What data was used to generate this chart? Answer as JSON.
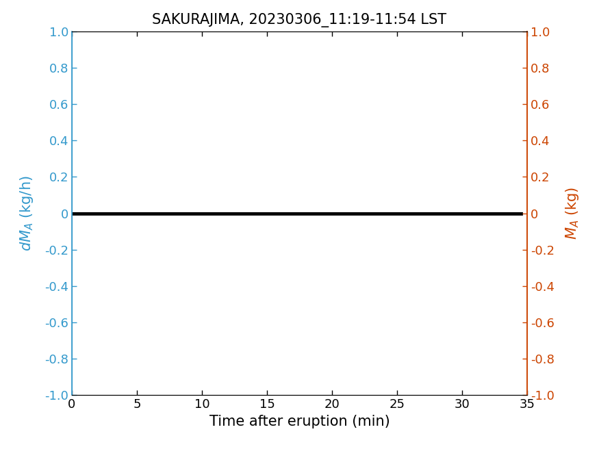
{
  "title": "SAKURAJIMA, 20230306_11:19-11:54 LST",
  "xlabel": "Time after eruption (min)",
  "xlim": [
    0,
    35
  ],
  "ylim": [
    -1,
    1
  ],
  "xticks": [
    0,
    5,
    10,
    15,
    20,
    25,
    30,
    35
  ],
  "yticks": [
    -1,
    -0.8,
    -0.6,
    -0.4,
    -0.2,
    0,
    0.2,
    0.4,
    0.6,
    0.8,
    1
  ],
  "line_x": [
    0,
    34.5
  ],
  "line_y": [
    0,
    0
  ],
  "line_color": "#000000",
  "line_width": 3.5,
  "left_axis_color": "#3399CC",
  "right_axis_color": "#CC4400",
  "title_fontsize": 15,
  "label_fontsize": 15,
  "tick_fontsize": 13,
  "background_color": "#ffffff",
  "fig_width": 8.75,
  "fig_height": 6.56,
  "dpi": 100
}
